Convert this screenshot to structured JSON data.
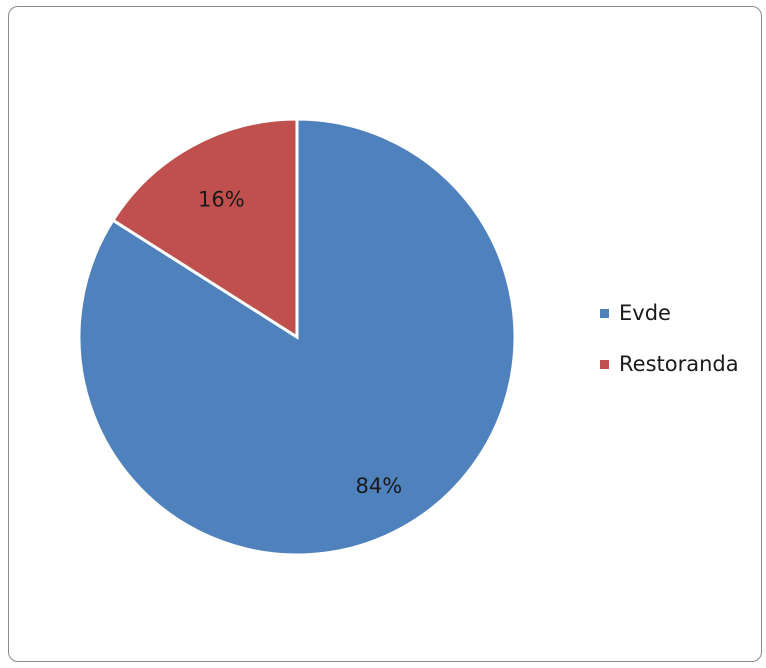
{
  "chart_data": {
    "type": "pie",
    "title": "",
    "categories": [
      "Evde",
      "Restoranda"
    ],
    "values": [
      84,
      16
    ],
    "data_labels": [
      "84%",
      "16%"
    ],
    "colors": [
      "#4f81bd",
      "#c0504d"
    ],
    "legend_placement": "right",
    "grid": false
  }
}
